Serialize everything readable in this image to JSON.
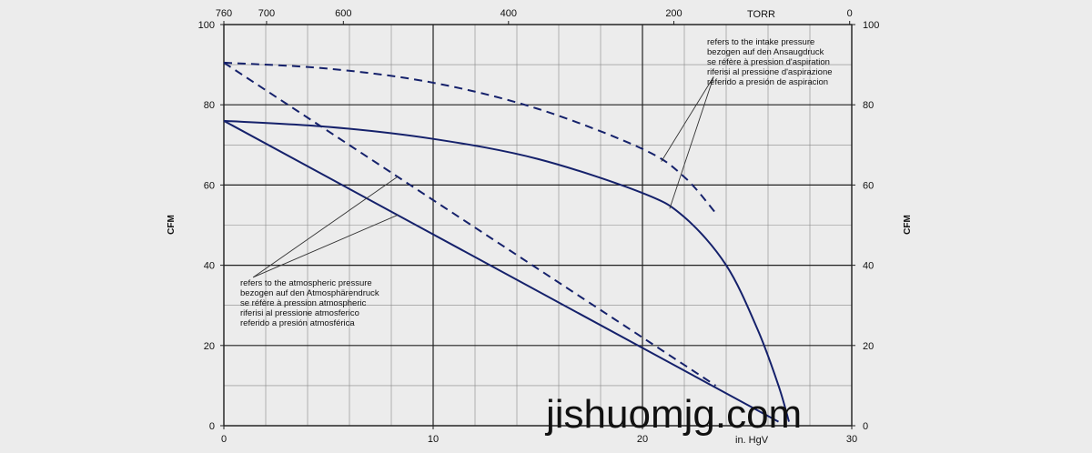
{
  "chart_data": {
    "type": "line",
    "xlabel": "in. HgV",
    "ylabel_left": "CFM",
    "ylabel_right": "CFM",
    "x_ticks": [
      "0",
      "10",
      "20",
      "30"
    ],
    "x_tick_values": [
      0,
      10,
      20,
      30
    ],
    "xlim": [
      0,
      30
    ],
    "ylim": [
      0,
      100
    ],
    "y_ticks_left": [
      "0",
      "20",
      "40",
      "60",
      "80",
      "100"
    ],
    "y_ticks_right": [
      "0",
      "20",
      "40",
      "60",
      "80",
      "100"
    ],
    "y_tick_values": [
      0,
      20,
      40,
      60,
      80,
      100
    ],
    "top_axis": {
      "label": "TORR",
      "ticks": [
        {
          "text": "760",
          "x": 0
        },
        {
          "text": "700",
          "x": 2.04
        },
        {
          "text": "600",
          "x": 5.71
        },
        {
          "text": "400",
          "x": 13.6
        },
        {
          "text": "200",
          "x": 21.5
        },
        {
          "text": "0",
          "x": 29.9
        }
      ]
    },
    "grid": true,
    "series": [
      {
        "style": "solid",
        "x": [
          0,
          5,
          10,
          15,
          20,
          22,
          24,
          25.5,
          26.5,
          27.0
        ],
        "y": [
          76,
          74.5,
          71.5,
          66.5,
          58,
          52,
          40,
          24,
          10,
          1
        ]
      },
      {
        "style": "solid",
        "x": [
          0,
          26.5
        ],
        "y": [
          76,
          1
        ]
      },
      {
        "style": "dashed",
        "x": [
          0,
          5,
          10,
          15,
          20,
          22,
          23.5
        ],
        "y": [
          90.5,
          89,
          85.5,
          79,
          69,
          62,
          53
        ]
      },
      {
        "style": "dashed",
        "x": [
          0,
          23.5
        ],
        "y": [
          90.5,
          10
        ]
      }
    ],
    "annotations": [
      {
        "lines": [
          "refers to the intake pressure",
          "bezogen auf den Ansaugdruck",
          "se réfère à pression d'aspiration",
          "riferisi al pressione d'aspirazione",
          "referido a presión de aspiracion"
        ]
      },
      {
        "lines": [
          "refers to the atmospheric pressure",
          "bezogen auf den Atmosphärendruck",
          "se réfère à pression atmospheric",
          "riferisi al pressione atmosferico",
          "referido a presión atmosférica"
        ]
      }
    ]
  },
  "watermark": "jishuomjg.com",
  "colors": {
    "curve": "#15216b",
    "grid": "#222222",
    "leader": "#333333",
    "background": "#ececec"
  }
}
